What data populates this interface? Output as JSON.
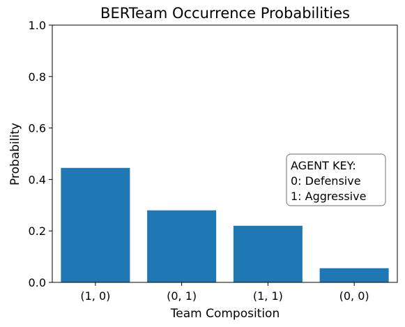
{
  "chart_data": {
    "type": "bar",
    "title": "BERTeam Occurrence Probabilities",
    "xlabel": "Team Composition",
    "ylabel": "Probability",
    "categories": [
      "(1, 0)",
      "(0, 1)",
      "(1, 1)",
      "(0, 0)"
    ],
    "values": [
      0.445,
      0.28,
      0.22,
      0.055
    ],
    "ylim": [
      0,
      1.0
    ],
    "yticks": [
      "0.0",
      "0.2",
      "0.4",
      "0.6",
      "0.8",
      "1.0"
    ],
    "grid": false,
    "bar_color": "#1f77b4",
    "annotation": {
      "lines": [
        "AGENT KEY:",
        "0: Defensive",
        "1: Aggressive"
      ],
      "placement": "middle-right"
    }
  }
}
